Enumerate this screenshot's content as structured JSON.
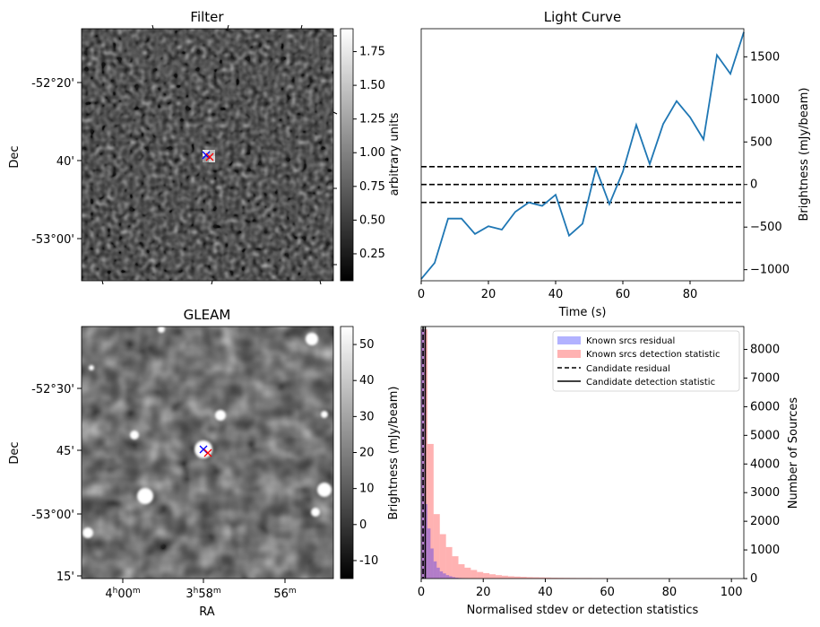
{
  "panels": {
    "filter": {
      "title": "Filter",
      "ylabel": "Dec",
      "yticks": [
        "-52°20'",
        "40'",
        "-53°00'"
      ],
      "colorbar": {
        "label": "arbitrary units",
        "ticks": [
          "0.25",
          "0.50",
          "0.75",
          "1.00",
          "1.25",
          "1.50",
          "1.75"
        ],
        "range": [
          0.05,
          1.92
        ]
      }
    },
    "gleam": {
      "title": "GLEAM",
      "ylabel": "Dec",
      "xlabel": "RA",
      "yticks": [
        "-52°30'",
        "45'",
        "-53°00'",
        "15'"
      ],
      "xticks": [
        {
          "main": "4",
          "sup1": "h",
          "mid": "00",
          "sup2": "m"
        },
        {
          "main": "3",
          "sup1": "h",
          "mid": "58",
          "sup2": "m"
        },
        {
          "main": "56",
          "sup1": "m",
          "mid": "",
          "sup2": ""
        }
      ],
      "colorbar": {
        "label": "Brightness (mJy/beam)",
        "ticks": [
          "-10",
          "0",
          "10",
          "20",
          "30",
          "40",
          "50"
        ],
        "range": [
          -15,
          55
        ]
      }
    }
  },
  "chart_data": [
    {
      "type": "heatmap",
      "title": "Filter",
      "xlabel": "",
      "ylabel": "Dec",
      "colorbar_label": "arbitrary units",
      "colorbar_range": [
        0.05,
        1.92
      ],
      "markers": [
        "blue x",
        "red x"
      ]
    },
    {
      "type": "line",
      "title": "Light Curve",
      "xlabel": "Time (s)",
      "ylabel": "Brightness (mJy/beam)",
      "xlim": [
        0,
        96
      ],
      "ylim": [
        -1130,
        1830
      ],
      "xticks": [
        0,
        20,
        40,
        60,
        80
      ],
      "yticks": [
        -1000,
        -500,
        0,
        500,
        1000,
        1500
      ],
      "color": "#1f77b4",
      "x": [
        0,
        4,
        8,
        12,
        16,
        20,
        24,
        28,
        32,
        36,
        40,
        44,
        48,
        52,
        56,
        60,
        64,
        68,
        72,
        76,
        80,
        84,
        88,
        92,
        96
      ],
      "values": [
        -1110,
        -920,
        -400,
        -400,
        -580,
        -490,
        -530,
        -320,
        -210,
        -250,
        -120,
        -600,
        -460,
        190,
        -230,
        150,
        700,
        240,
        710,
        980,
        790,
        530,
        1520,
        1300,
        1790
      ],
      "hlines": [
        -210,
        0,
        210
      ]
    },
    {
      "type": "heatmap",
      "title": "GLEAM",
      "xlabel": "RA",
      "ylabel": "Dec",
      "colorbar_label": "Brightness (mJy/beam)",
      "colorbar_range": [
        -15,
        55
      ],
      "markers": [
        "blue x",
        "red x"
      ]
    },
    {
      "type": "bar",
      "title": "",
      "xlabel": "Normalised stdev or detection statistics",
      "ylabel": "Brightness (mJy/beam)",
      "ylabel_right": "Number of Sources",
      "xlim": [
        0,
        104
      ],
      "ylim": [
        0,
        8800
      ],
      "xticks": [
        0,
        20,
        40,
        60,
        80,
        100
      ],
      "yticks": [
        0,
        1000,
        2000,
        3000,
        4000,
        5000,
        6000,
        7000,
        8000
      ],
      "legend_position": "top-right",
      "bin_width": 2,
      "series": [
        {
          "name": "Known srcs residual",
          "color": "#0000ff",
          "alpha": 0.3,
          "bin_starts": [
            0,
            1,
            2,
            3,
            4,
            5,
            6,
            7,
            8,
            9,
            10,
            11,
            12,
            13,
            14
          ],
          "values": [
            8700,
            2600,
            1750,
            1050,
            600,
            380,
            250,
            180,
            120,
            80,
            50,
            30,
            20,
            15,
            10
          ]
        },
        {
          "name": "Known srcs detection statistic",
          "color": "#ff0000",
          "alpha": 0.3,
          "bin_starts": [
            0,
            2,
            4,
            6,
            8,
            10,
            12,
            14,
            16,
            18,
            20,
            22,
            24,
            26,
            28,
            30,
            32,
            34,
            36,
            38,
            40,
            42,
            44,
            46,
            48,
            50,
            55,
            60,
            65,
            70,
            75,
            80,
            85,
            90,
            95
          ],
          "values": [
            8700,
            4700,
            2250,
            1550,
            1100,
            780,
            500,
            380,
            300,
            230,
            190,
            150,
            120,
            100,
            80,
            70,
            60,
            50,
            45,
            40,
            35,
            30,
            28,
            25,
            22,
            20,
            18,
            15,
            14,
            12,
            11,
            10,
            9,
            8,
            7
          ]
        }
      ],
      "vlines": [
        {
          "name": "Candidate residual",
          "x": 0.6,
          "style": "dashed"
        },
        {
          "name": "Candidate detection statistic",
          "x": 1.3,
          "style": "solid"
        }
      ]
    }
  ]
}
